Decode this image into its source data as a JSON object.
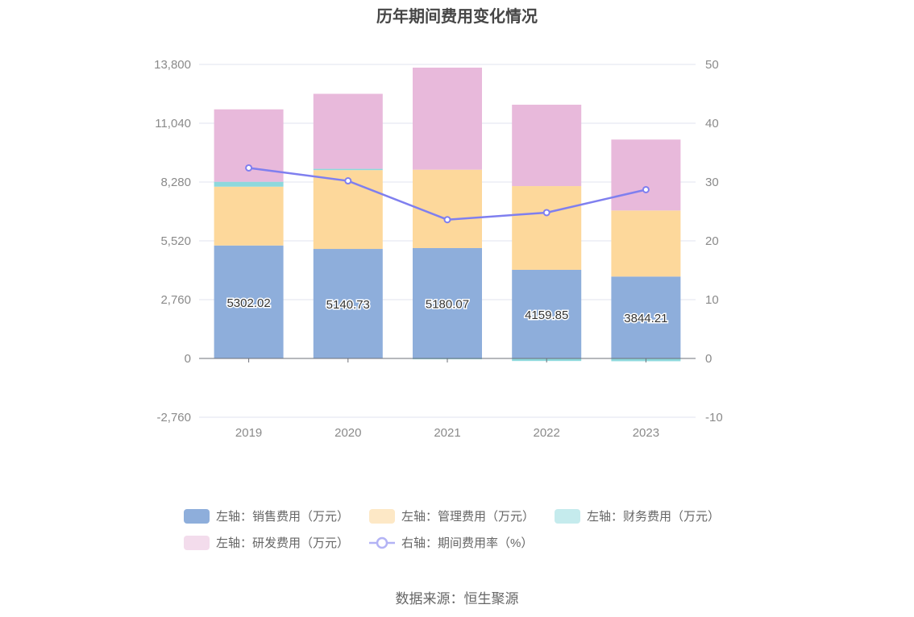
{
  "title": "历年期间费用变化情况",
  "source": "数据来源：恒生聚源",
  "chart_data": {
    "type": "bar",
    "stacked": true,
    "categories": [
      "2019",
      "2020",
      "2021",
      "2022",
      "2023"
    ],
    "y_left": {
      "range": [
        -2760,
        13800
      ],
      "ticks": [
        "13,800",
        "11,040",
        "8,280",
        "5,520",
        "2,760",
        "0",
        "-2,760"
      ]
    },
    "y_right": {
      "range": [
        -10,
        50
      ],
      "ticks": [
        "50",
        "40",
        "30",
        "20",
        "10",
        "0",
        "-10"
      ]
    },
    "series": [
      {
        "name": "左轴：销售费用（万元）",
        "type": "bar",
        "axis": "left",
        "color": "#8eaedb",
        "values": [
          5302.02,
          5140.73,
          5180.07,
          4159.85,
          3844.21
        ],
        "labels": [
          "5302.02",
          "5140.73",
          "5180.07",
          "4159.85",
          "3844.21"
        ]
      },
      {
        "name": "左轴：管理费用（万元）",
        "type": "bar",
        "axis": "left",
        "color": "#fdd89b",
        "values": [
          2760,
          3700,
          3680,
          3930,
          3100
        ]
      },
      {
        "name": "左轴：财务费用（万元）",
        "type": "bar",
        "axis": "left",
        "color": "#8dd8dc",
        "values": [
          230,
          60,
          -40,
          -120,
          -130
        ]
      },
      {
        "name": "左轴：研发费用（万元）",
        "type": "bar",
        "axis": "left",
        "color": "#e8b9db",
        "values": [
          3400,
          3520,
          4790,
          3820,
          3330
        ]
      },
      {
        "name": "右轴：期间费用率（%）",
        "type": "line",
        "axis": "right",
        "color": "#7f7fef",
        "values": [
          32.4,
          30.2,
          23.6,
          24.8,
          28.7
        ]
      }
    ],
    "legend_position": "bottom",
    "grid": true
  }
}
